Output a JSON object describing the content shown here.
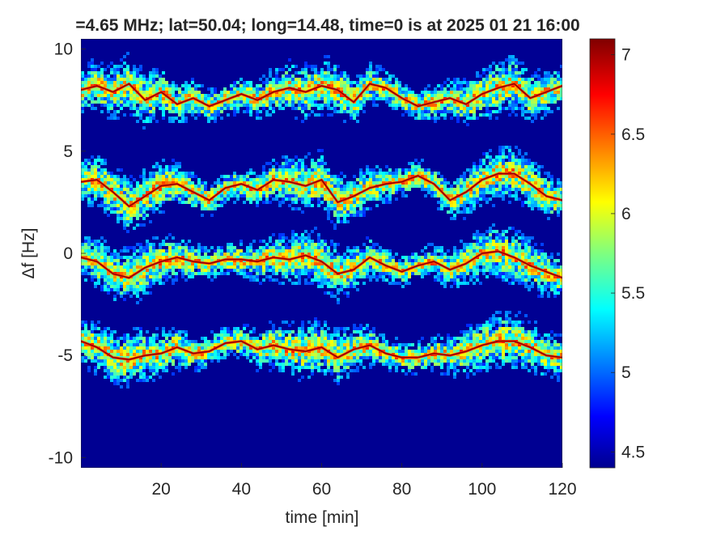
{
  "chart_data": {
    "type": "heatmap",
    "title": "=4.65 MHz;  lat=50.04; long=14.48, time=0 is at 2025 01 21 16:00",
    "xlabel": "time [min]",
    "ylabel": "Δf [Hz]",
    "xlim": [
      0,
      120
    ],
    "ylim": [
      -10.5,
      10.5
    ],
    "xticks": [
      20,
      40,
      60,
      80,
      100,
      120
    ],
    "yticks": [
      10,
      5,
      0,
      -5,
      -10
    ],
    "colorbar": {
      "range": [
        4.4,
        7.1
      ],
      "ticks": [
        4.5,
        5,
        5.5,
        6,
        6.5,
        7
      ],
      "colormap": "jet"
    },
    "background_level": 4.45,
    "bands": [
      {
        "name": "",
        "trace": [
          [
            0,
            8.0
          ],
          [
            4,
            8.2
          ],
          [
            8,
            7.9
          ],
          [
            12,
            8.3
          ],
          [
            16,
            7.5
          ],
          [
            20,
            7.9
          ],
          [
            24,
            7.3
          ],
          [
            28,
            7.6
          ],
          [
            32,
            7.2
          ],
          [
            36,
            7.5
          ],
          [
            40,
            7.8
          ],
          [
            44,
            7.5
          ],
          [
            48,
            7.9
          ],
          [
            52,
            8.1
          ],
          [
            56,
            7.9
          ],
          [
            60,
            8.2
          ],
          [
            64,
            8.0
          ],
          [
            68,
            7.4
          ],
          [
            72,
            8.3
          ],
          [
            76,
            8.1
          ],
          [
            80,
            7.6
          ],
          [
            84,
            7.2
          ],
          [
            88,
            7.4
          ],
          [
            92,
            7.6
          ],
          [
            96,
            7.3
          ],
          [
            100,
            7.8
          ],
          [
            104,
            8.1
          ],
          [
            108,
            8.3
          ],
          [
            112,
            7.6
          ],
          [
            116,
            7.9
          ],
          [
            120,
            8.2
          ]
        ]
      },
      {
        "name": "",
        "trace": [
          [
            0,
            3.5
          ],
          [
            4,
            3.6
          ],
          [
            8,
            3.0
          ],
          [
            12,
            2.3
          ],
          [
            16,
            2.8
          ],
          [
            20,
            3.3
          ],
          [
            24,
            3.4
          ],
          [
            28,
            3.0
          ],
          [
            32,
            2.6
          ],
          [
            36,
            3.2
          ],
          [
            40,
            3.4
          ],
          [
            44,
            3.1
          ],
          [
            48,
            3.6
          ],
          [
            52,
            3.5
          ],
          [
            56,
            3.3
          ],
          [
            60,
            3.6
          ],
          [
            64,
            2.5
          ],
          [
            68,
            2.8
          ],
          [
            72,
            3.2
          ],
          [
            76,
            3.4
          ],
          [
            80,
            3.5
          ],
          [
            84,
            3.8
          ],
          [
            88,
            3.4
          ],
          [
            92,
            2.6
          ],
          [
            96,
            3.0
          ],
          [
            100,
            3.6
          ],
          [
            104,
            3.9
          ],
          [
            108,
            3.9
          ],
          [
            112,
            3.4
          ],
          [
            116,
            2.8
          ],
          [
            120,
            2.6
          ]
        ]
      },
      {
        "name": "",
        "trace": [
          [
            0,
            -0.2
          ],
          [
            4,
            -0.4
          ],
          [
            8,
            -1.0
          ],
          [
            12,
            -1.2
          ],
          [
            16,
            -0.7
          ],
          [
            20,
            -0.4
          ],
          [
            24,
            -0.2
          ],
          [
            28,
            -0.4
          ],
          [
            32,
            -0.5
          ],
          [
            36,
            -0.3
          ],
          [
            40,
            -0.3
          ],
          [
            44,
            -0.4
          ],
          [
            48,
            -0.2
          ],
          [
            52,
            -0.3
          ],
          [
            56,
            -0.1
          ],
          [
            60,
            -0.4
          ],
          [
            64,
            -1.0
          ],
          [
            68,
            -0.8
          ],
          [
            72,
            -0.2
          ],
          [
            76,
            -0.6
          ],
          [
            80,
            -0.9
          ],
          [
            84,
            -0.6
          ],
          [
            88,
            -0.4
          ],
          [
            92,
            -0.8
          ],
          [
            96,
            -0.5
          ],
          [
            100,
            0.0
          ],
          [
            104,
            0.1
          ],
          [
            108,
            -0.2
          ],
          [
            112,
            -0.6
          ],
          [
            116,
            -0.9
          ],
          [
            120,
            -1.2
          ]
        ]
      },
      {
        "name": "",
        "trace": [
          [
            0,
            -4.3
          ],
          [
            4,
            -4.6
          ],
          [
            8,
            -5.1
          ],
          [
            12,
            -5.2
          ],
          [
            16,
            -5.0
          ],
          [
            20,
            -4.9
          ],
          [
            24,
            -4.6
          ],
          [
            28,
            -4.9
          ],
          [
            32,
            -4.8
          ],
          [
            36,
            -4.4
          ],
          [
            40,
            -4.3
          ],
          [
            44,
            -4.7
          ],
          [
            48,
            -4.5
          ],
          [
            52,
            -4.7
          ],
          [
            56,
            -4.8
          ],
          [
            60,
            -4.6
          ],
          [
            64,
            -5.1
          ],
          [
            68,
            -4.7
          ],
          [
            72,
            -4.5
          ],
          [
            76,
            -4.9
          ],
          [
            80,
            -5.1
          ],
          [
            84,
            -5.1
          ],
          [
            88,
            -4.9
          ],
          [
            92,
            -5.0
          ],
          [
            96,
            -4.8
          ],
          [
            100,
            -4.5
          ],
          [
            104,
            -4.3
          ],
          [
            108,
            -4.3
          ],
          [
            112,
            -4.6
          ],
          [
            116,
            -5.0
          ],
          [
            120,
            -5.1
          ]
        ]
      }
    ],
    "band_halfwidth_hz": 1.2
  }
}
